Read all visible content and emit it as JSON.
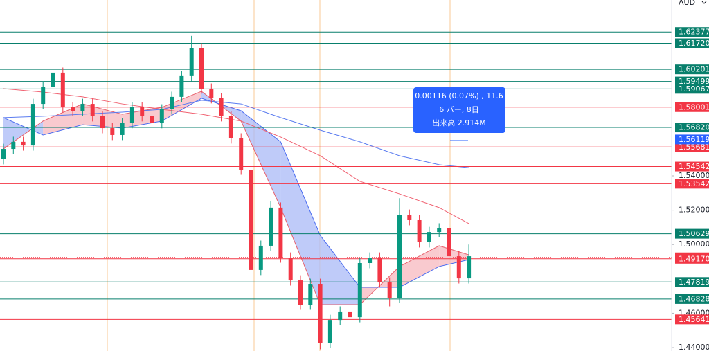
{
  "chart_data": {
    "type": "candlestick",
    "currency": "AUD",
    "ylim": [
      1.438,
      1.6424
    ],
    "yticks": [
      {
        "value": 1.44,
        "label": "1.44000"
      },
      {
        "value": 1.46,
        "label": "1.46000"
      },
      {
        "value": 1.5,
        "label": "1.50000"
      },
      {
        "value": 1.52,
        "label": "1.52000"
      },
      {
        "value": 1.54,
        "label": "1.54000"
      }
    ],
    "up_color": "#089981",
    "down_color": "#f23645",
    "open": [
      1.5497,
      1.5557,
      1.5598,
      1.5577,
      1.5819,
      1.592,
      1.6001,
      1.5799,
      1.5779,
      1.5819,
      1.5747,
      1.5678,
      1.5638,
      1.5707,
      1.5799,
      1.5747,
      1.5707,
      1.5787,
      1.586,
      1.5981,
      1.6142,
      1.5908,
      1.5852,
      1.5747,
      1.5618,
      1.5436,
      1.4852,
      1.4993,
      1.5215,
      1.4924,
      1.4791,
      1.465,
      1.4771,
      1.4428,
      1.4561,
      1.461,
      1.4577,
      1.4892,
      1.4924,
      1.4779,
      1.469,
      1.5174,
      1.5142,
      1.5013,
      1.5073,
      1.5094,
      1.4932,
      1.4803
    ],
    "high": [
      1.5587,
      1.5628,
      1.5628,
      1.5849,
      1.595,
      1.6162,
      1.6031,
      1.5829,
      1.5849,
      1.5849,
      1.5777,
      1.5708,
      1.5737,
      1.5829,
      1.5829,
      1.5777,
      1.5817,
      1.589,
      1.6011,
      1.6215,
      1.6172,
      1.5938,
      1.5882,
      1.5777,
      1.5648,
      1.5466,
      1.5023,
      1.5255,
      1.5245,
      1.4954,
      1.4821,
      1.4801,
      1.4801,
      1.4591,
      1.464,
      1.464,
      1.4922,
      1.4954,
      1.4954,
      1.4809,
      1.527,
      1.5204,
      1.5172,
      1.5103,
      1.5124,
      1.5124,
      1.4962,
      1.5
    ],
    "low": [
      1.5467,
      1.5527,
      1.5547,
      1.5547,
      1.5789,
      1.589,
      1.5769,
      1.5749,
      1.5749,
      1.5717,
      1.5648,
      1.5608,
      1.5608,
      1.5677,
      1.5717,
      1.5677,
      1.5677,
      1.5757,
      1.583,
      1.5951,
      1.5878,
      1.5822,
      1.5717,
      1.5588,
      1.5406,
      1.47,
      1.4822,
      1.4963,
      1.4894,
      1.4761,
      1.462,
      1.462,
      1.439,
      1.4398,
      1.4531,
      1.4547,
      1.4547,
      1.4862,
      1.4749,
      1.464,
      1.466,
      1.5112,
      1.4983,
      1.4983,
      1.5043,
      1.4902,
      1.4773,
      1.4773
    ],
    "close": [
      1.5557,
      1.5598,
      1.5577,
      1.5819,
      1.592,
      1.6001,
      1.5799,
      1.5779,
      1.5819,
      1.5747,
      1.5678,
      1.5638,
      1.5707,
      1.5799,
      1.5747,
      1.5707,
      1.5787,
      1.586,
      1.5981,
      1.6142,
      1.5908,
      1.5852,
      1.5747,
      1.5618,
      1.5436,
      1.4852,
      1.4993,
      1.5215,
      1.4924,
      1.4791,
      1.465,
      1.4771,
      1.4428,
      1.4561,
      1.461,
      1.4577,
      1.4892,
      1.4924,
      1.4779,
      1.469,
      1.5174,
      1.5142,
      1.5013,
      1.5073,
      1.5094,
      1.4932,
      1.4803,
      1.4932
    ],
    "indicator_x": [
      0,
      4,
      8,
      12,
      16,
      20,
      24,
      28,
      32,
      36,
      40,
      44,
      47
    ],
    "series": [
      {
        "color": "#5b7cf0",
        "values": [
          1.5739,
          1.5747,
          1.5759,
          1.5771,
          1.5787,
          1.584,
          1.5819,
          1.5739,
          1.5666,
          1.5598,
          1.5517,
          1.5465,
          1.5448
        ]
      },
      {
        "color": "#f06070",
        "values": [
          1.5908,
          1.5888,
          1.586,
          1.5819,
          1.5787,
          1.5759,
          1.5719,
          1.5626,
          1.5517,
          1.5368,
          1.5295,
          1.5215,
          1.5122
        ]
      }
    ],
    "cloud": {
      "fast": [
        1.5557,
        1.5719,
        1.5819,
        1.5759,
        1.5799,
        1.5892,
        1.5719,
        1.5215,
        1.465,
        1.465,
        1.4872,
        1.4993,
        1.494
      ],
      "slow": [
        1.5739,
        1.5638,
        1.5698,
        1.5678,
        1.5719,
        1.5852,
        1.5779,
        1.5598,
        1.5053,
        1.4751,
        1.4751,
        1.4872,
        1.4912
      ],
      "fast_color": "#e8606c",
      "slow_color": "#4a6cf0",
      "up_fill": "#f7b8bf",
      "down_fill": "#a9b9f7"
    },
    "levels": [
      {
        "value": 1.62377,
        "color": "#087f6c"
      },
      {
        "value": 1.6172,
        "label": "1.61720",
        "color": "#087f6c"
      },
      {
        "value": 1.60201,
        "color": "#087f6c"
      },
      {
        "value": 1.59499,
        "color": "#087f6c"
      },
      {
        "value": 1.59067,
        "color": "#087f6c"
      },
      {
        "value": 1.58001,
        "color": "#f23645"
      },
      {
        "value": 1.5682,
        "label": "1.56820",
        "color": "#087f6c"
      },
      {
        "value": 1.55681,
        "color": "#f23645"
      },
      {
        "value": 1.56119,
        "color": "#2962ff",
        "line": false
      },
      {
        "value": 1.54542,
        "color": "#f23645"
      },
      {
        "value": 1.53542,
        "color": "#f23645"
      },
      {
        "value": 1.50629,
        "color": "#087f6c"
      },
      {
        "value": 1.49253,
        "color": "#f23645",
        "dotted": true
      },
      {
        "value": 1.4917,
        "label": "1.49170",
        "color": "#f23645"
      },
      {
        "value": 1.47819,
        "color": "#087f6c"
      },
      {
        "value": 1.46828,
        "color": "#087f6c"
      },
      {
        "value": 1.45641,
        "color": "#f23645"
      }
    ],
    "tooltip": [
      "0.00116 (0.07%) , 11.6",
      "6 バー, 8日",
      "出来高 2.914M"
    ]
  }
}
